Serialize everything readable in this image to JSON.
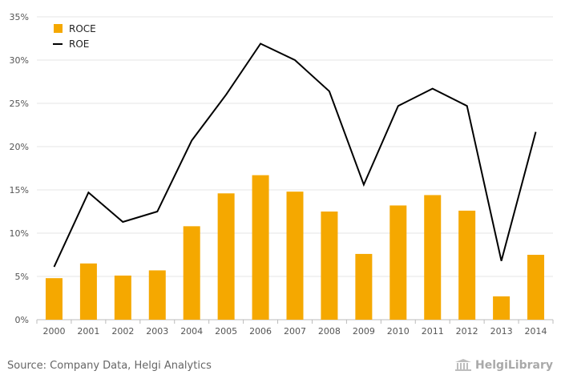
{
  "chart_data": {
    "type": "bar",
    "categories": [
      "2000",
      "2001",
      "2002",
      "2003",
      "2004",
      "2005",
      "2006",
      "2007",
      "2008",
      "2009",
      "2010",
      "2011",
      "2012",
      "2013",
      "2014"
    ],
    "series": [
      {
        "name": "ROCE",
        "type": "bar",
        "color": "#f5a800",
        "values": [
          4.8,
          6.5,
          5.1,
          5.7,
          10.8,
          14.6,
          16.7,
          14.8,
          12.5,
          7.6,
          13.2,
          14.4,
          12.6,
          2.7,
          7.5
        ]
      },
      {
        "name": "ROE",
        "type": "line",
        "color": "#000000",
        "values": [
          6.1,
          14.7,
          11.3,
          12.5,
          20.7,
          26.0,
          31.9,
          30.0,
          26.4,
          15.6,
          24.7,
          26.7,
          24.7,
          6.8,
          21.7
        ]
      }
    ],
    "y_ticks": [
      "0%",
      "5%",
      "10%",
      "15%",
      "20%",
      "25%",
      "30%",
      "35%"
    ],
    "ylim": [
      0,
      35
    ],
    "grid": true,
    "legend_position": "top-left"
  },
  "footer": {
    "source": "Source: Company Data, Helgi Analytics",
    "logo_text": "HelgiLibrary"
  }
}
